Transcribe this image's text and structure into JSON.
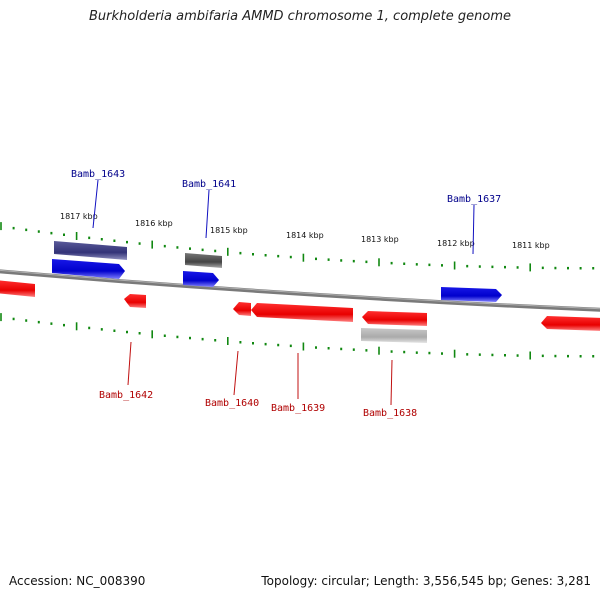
{
  "header": {
    "title": "Burkholderia ambifaria AMMD chromosome 1, complete genome"
  },
  "footer": {
    "accession": "Accession: NC_008390",
    "summary": "Topology: circular; Length: 3,556,545 bp; Genes: 3,281"
  },
  "scale_ticks": [
    "1817 kbp",
    "1816 kbp",
    "1815 kbp",
    "1814 kbp",
    "1813 kbp",
    "1812 kbp",
    "1811 kbp"
  ],
  "gene_labels": {
    "forward": [
      "Bamb_1643",
      "Bamb_1641",
      "Bamb_1637"
    ],
    "reverse": [
      "Bamb_1642",
      "Bamb_1640",
      "Bamb_1639",
      "Bamb_1638"
    ]
  },
  "colors": {
    "forward_gene": "#1010e0",
    "reverse_gene": "#e01010",
    "rna_feature": "#444488",
    "pseudo_feature": "#555555",
    "reverse_grey_feature": "#aaaaaa",
    "backbone": "#808080",
    "tick": "#118811",
    "forward_label": "#00008b",
    "reverse_label": "#b00000"
  }
}
